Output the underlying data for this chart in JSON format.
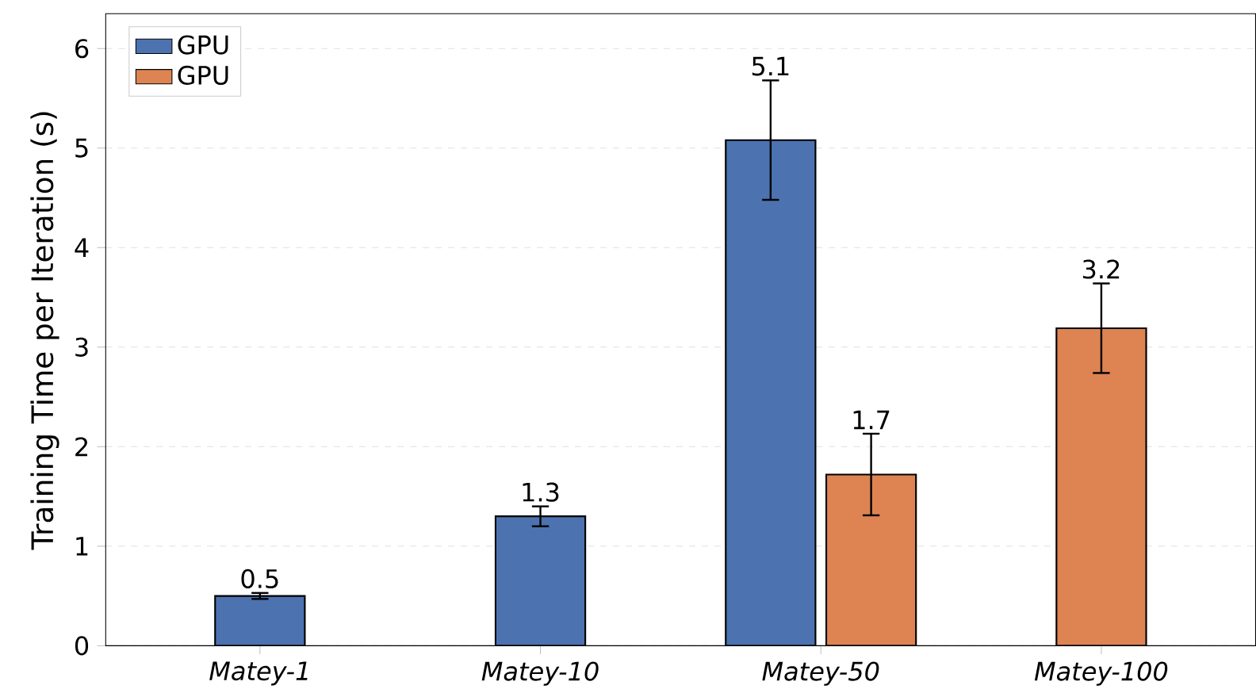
{
  "chart_data": {
    "type": "bar",
    "ylabel": "Training Time per Iteration (s)",
    "categories": [
      "Matey-1",
      "Matey-10",
      "Matey-50",
      "Matey-100"
    ],
    "series": [
      {
        "name": "GPU",
        "color": "#4c72b0",
        "values": [
          0.5,
          1.3,
          5.08,
          null
        ],
        "errors": [
          0.03,
          0.1,
          0.6,
          null
        ],
        "value_labels": [
          "0.5",
          "1.3",
          "5.1",
          null
        ]
      },
      {
        "name": "GPU",
        "color": "#dd8452",
        "values": [
          null,
          null,
          1.72,
          3.19
        ],
        "errors": [
          null,
          null,
          0.41,
          0.45
        ],
        "value_labels": [
          null,
          null,
          "1.7",
          "3.2"
        ]
      }
    ],
    "ylim": [
      0,
      6.35
    ],
    "yticks": [
      0,
      1,
      2,
      3,
      4,
      5,
      6
    ],
    "grid": "y",
    "legend": "top left"
  }
}
